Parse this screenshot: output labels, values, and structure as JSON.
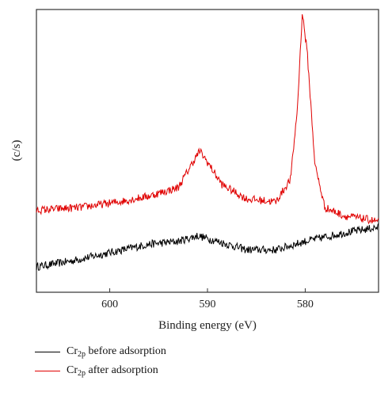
{
  "chart_data": {
    "type": "line",
    "title": "",
    "xlabel": "Binding energy (eV)",
    "ylabel": "(c/s)",
    "xlim": [
      607.5,
      572.5
    ],
    "x_reversed": true,
    "x_ticks": [
      600,
      590,
      580
    ],
    "y_ticks": [],
    "ylim": [
      0,
      1
    ],
    "grid": false,
    "legend_position": "below-left",
    "series": [
      {
        "name_base": "Cr",
        "name_sub": "2p",
        "name_rest": " before adsorption",
        "color": "#000000",
        "points": [
          [
            607.5,
            0.09
          ],
          [
            604,
            0.11
          ],
          [
            600,
            0.14
          ],
          [
            596,
            0.17
          ],
          [
            593,
            0.18
          ],
          [
            591,
            0.2
          ],
          [
            589,
            0.18
          ],
          [
            586,
            0.15
          ],
          [
            583,
            0.15
          ],
          [
            580,
            0.18
          ],
          [
            576,
            0.21
          ],
          [
            572.5,
            0.23
          ]
        ]
      },
      {
        "name_base": "Cr",
        "name_sub": "2p",
        "name_rest": " after adsorption",
        "color": "#e00000",
        "points": [
          [
            607.5,
            0.29
          ],
          [
            603,
            0.3
          ],
          [
            599,
            0.32
          ],
          [
            596,
            0.34
          ],
          [
            593,
            0.37
          ],
          [
            591.5,
            0.46
          ],
          [
            590.8,
            0.5
          ],
          [
            590,
            0.46
          ],
          [
            588.5,
            0.38
          ],
          [
            586,
            0.33
          ],
          [
            583,
            0.32
          ],
          [
            581.5,
            0.4
          ],
          [
            580.8,
            0.65
          ],
          [
            580.3,
            0.99
          ],
          [
            579.8,
            0.85
          ],
          [
            579,
            0.45
          ],
          [
            578,
            0.3
          ],
          [
            576,
            0.27
          ],
          [
            574,
            0.26
          ],
          [
            572.5,
            0.25
          ]
        ]
      }
    ]
  }
}
